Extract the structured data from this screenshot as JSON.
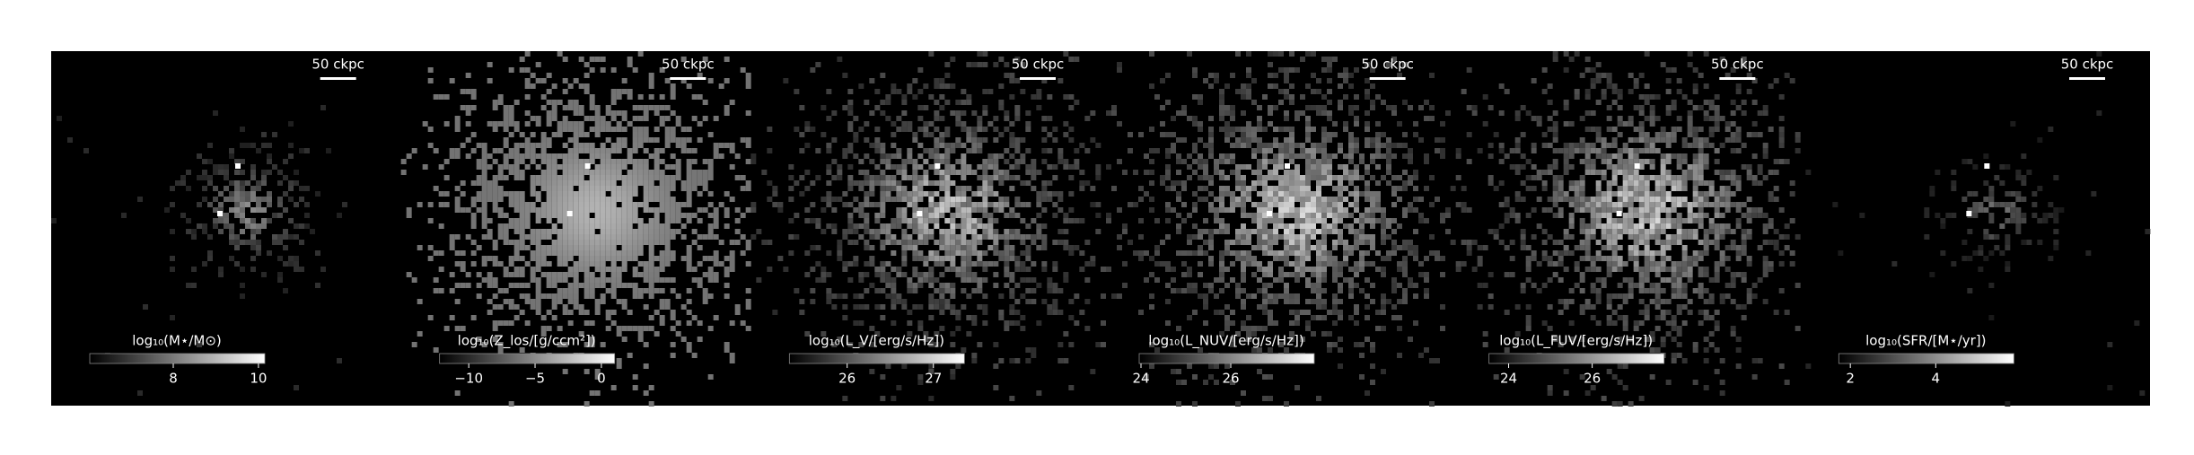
{
  "chart_data": [
    {
      "type": "image",
      "scale_label": "50 ckpc",
      "colorbar_label": "log₁₀(M⋆/M⊙)",
      "xlim": [
        6.04,
        10.15
      ],
      "xticks": [
        8,
        10
      ]
    },
    {
      "type": "image",
      "scale_label": "50 ckpc",
      "colorbar_label": "log₁₀(Z_los/[g/ccm²])",
      "xlim": [
        -12.2,
        1
      ],
      "xticks": [
        {
          "value": -10,
          "label": "−10"
        },
        {
          "value": -5,
          "label": "−5"
        },
        0
      ]
    },
    {
      "type": "image",
      "scale_label": "50 ckpc",
      "colorbar_label": "log₁₀(L_V/[erg/s/Hz])",
      "xlim": [
        25.33,
        27.36
      ],
      "xticks": [
        26,
        27
      ]
    },
    {
      "type": "image",
      "scale_label": "50 ckpc",
      "colorbar_label": "log₁₀(L_NUV/[erg/s/Hz])",
      "xlim": [
        23.96,
        27.86
      ],
      "xticks": [
        24,
        26
      ]
    },
    {
      "type": "image",
      "scale_label": "50 ckpc",
      "colorbar_label": "log₁₀(L_FUV/[erg/s/Hz])",
      "xlim": [
        23.53,
        27.72
      ],
      "xticks": [
        24,
        26
      ]
    },
    {
      "type": "image",
      "scale_label": "50 ckpc",
      "colorbar_label": "log₁₀(SFR/[M⋆/yr])",
      "xlim": [
        1.73,
        5.83
      ],
      "xticks": [
        2,
        4
      ]
    }
  ]
}
